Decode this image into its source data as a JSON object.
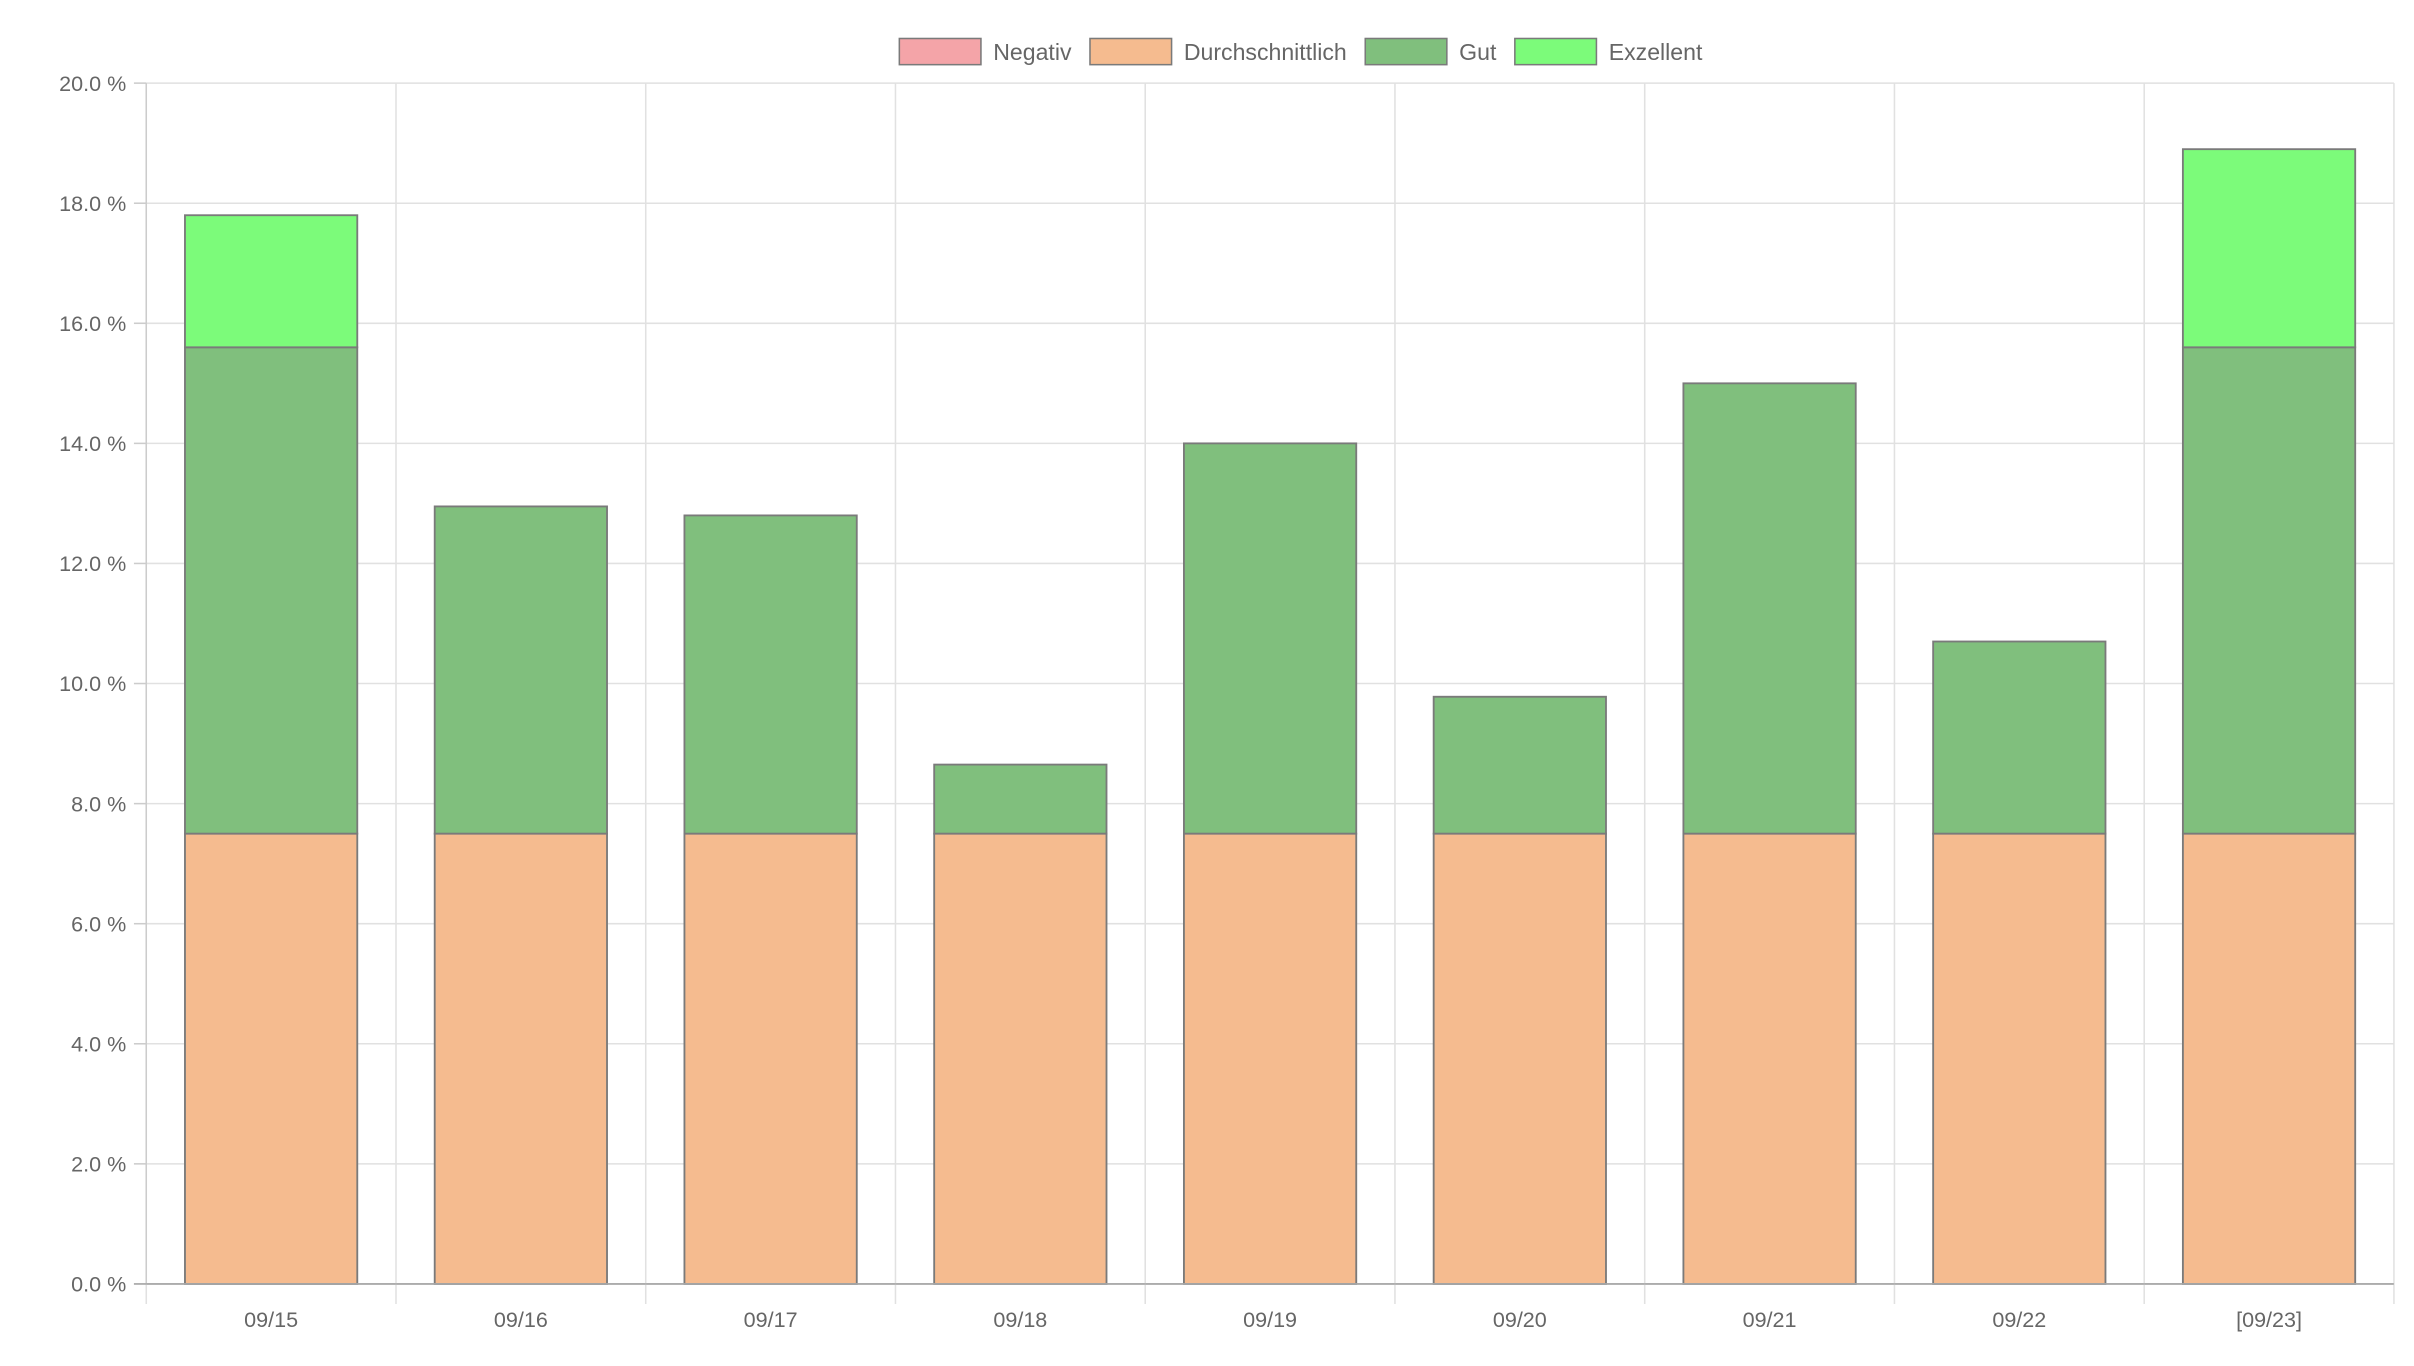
{
  "chart_data": {
    "type": "bar",
    "stacked": true,
    "categories": [
      "09/15",
      "09/16",
      "09/17",
      "09/18",
      "09/19",
      "09/20",
      "09/21",
      "09/22",
      "[09/23]"
    ],
    "series": [
      {
        "name": "Negativ",
        "color": "#f4a4a8",
        "values": [
          0,
          0,
          0,
          0,
          0,
          0,
          0,
          0,
          0
        ]
      },
      {
        "name": "Durchschnittlich",
        "color": "#f5bb8f",
        "values": [
          7.5,
          7.5,
          7.5,
          7.5,
          7.5,
          7.5,
          7.5,
          7.5,
          7.5
        ]
      },
      {
        "name": "Gut",
        "color": "#80bf7d",
        "values": [
          8.1,
          5.45,
          5.3,
          1.15,
          6.5,
          2.28,
          7.5,
          3.2,
          8.1
        ]
      },
      {
        "name": "Exzellent",
        "color": "#7cfb7a",
        "values": [
          2.2,
          0,
          0,
          0,
          0,
          0,
          0,
          0,
          3.3
        ]
      }
    ],
    "yticks": [
      "0.0 %",
      "2.0 %",
      "4.0 %",
      "6.0 %",
      "8.0 %",
      "10.0 %",
      "12.0 %",
      "14.0 %",
      "16.0 %",
      "18.0 %",
      "20.0 %"
    ],
    "ylim": [
      0,
      20
    ],
    "ystep": 2,
    "grid": true,
    "legend_position": "top-center",
    "title": "",
    "xlabel": "",
    "ylabel": ""
  }
}
